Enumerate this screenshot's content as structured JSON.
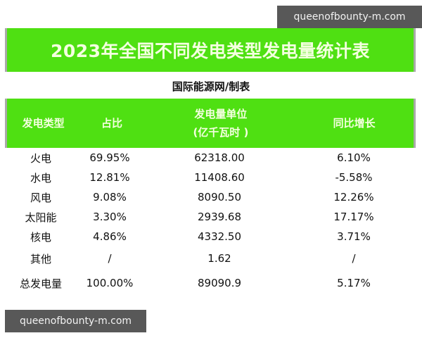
{
  "watermarks": {
    "top": "queenofbounty-m.com",
    "bottom": "queenofbounty-m.com"
  },
  "title": "2023年全国不同发电类型发电量统计表",
  "subtitle": "国际能源网/制表",
  "colors": {
    "header_green": "#4fe012",
    "header_text": "#f4ffe0",
    "border_gray": "#a9a9a9",
    "watermark_bg": "#585858"
  },
  "table": {
    "headers": {
      "type": "发电类型",
      "share": "占比",
      "generation_line1": "发电量单位",
      "generation_line2": "(亿千瓦时 )",
      "yoy": "同比增长"
    },
    "rows": [
      {
        "type": "火电",
        "share": "69.95%",
        "generation": "62318.00",
        "yoy": "6.10%"
      },
      {
        "type": "水电",
        "share": "12.81%",
        "generation": "11408.60",
        "yoy": "-5.58%"
      },
      {
        "type": "风电",
        "share": "9.08%",
        "generation": "8090.50",
        "yoy": "12.26%"
      },
      {
        "type": "太阳能",
        "share": "3.30%",
        "generation": "2939.68",
        "yoy": "17.17%"
      },
      {
        "type": "核电",
        "share": "4.86%",
        "generation": "4332.50",
        "yoy": "3.71%"
      },
      {
        "type": "其他",
        "share": "/",
        "generation": "1.62",
        "yoy": "/"
      },
      {
        "type": "总发电量",
        "share": "100.00%",
        "generation": "89090.9",
        "yoy": "5.17%"
      }
    ]
  }
}
